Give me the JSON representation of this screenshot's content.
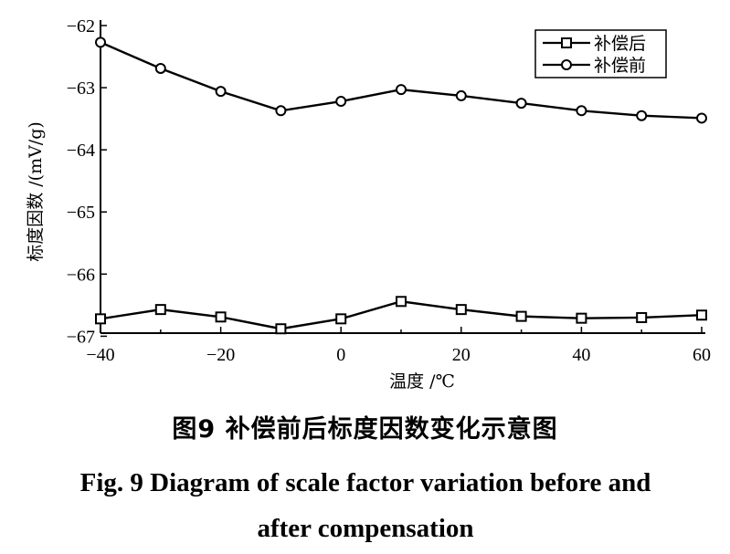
{
  "chart_data": {
    "type": "line",
    "x": [
      -40,
      -30,
      -20,
      -10,
      0,
      10,
      20,
      30,
      40,
      50,
      60
    ],
    "series": [
      {
        "name": "补偿后",
        "marker": "square",
        "values": [
          -66.72,
          -66.57,
          -66.69,
          -66.88,
          -66.72,
          -66.44,
          -66.57,
          -66.68,
          -66.71,
          -66.7,
          -66.66
        ]
      },
      {
        "name": "补偿前",
        "marker": "circle",
        "values": [
          -62.27,
          -62.69,
          -63.06,
          -63.37,
          -63.22,
          -63.03,
          -63.13,
          -63.25,
          -63.37,
          -63.45,
          -63.49
        ]
      }
    ],
    "xlabel": "温度 /℃",
    "ylabel": "标度因数 /(mV/g)",
    "xlim": [
      -40,
      60
    ],
    "ylim": [
      -67,
      -62
    ],
    "xticks": [
      -40,
      -20,
      0,
      20,
      40,
      60
    ],
    "xtick_labels": [
      "−40",
      "−20",
      "0",
      "20",
      "40",
      "60"
    ],
    "yticks": [
      -62,
      -63,
      -64,
      -65,
      -66,
      -67
    ],
    "ytick_labels": [
      "−62",
      "−63",
      "−64",
      "−65",
      "−66",
      "−67"
    ],
    "grid": false,
    "legend": "top-right",
    "line_color": "#000000"
  },
  "caption": {
    "cn": "图9  补偿前后标度因数变化示意图",
    "en": "Fig. 9  Diagram of scale factor variation before and after compensation"
  }
}
